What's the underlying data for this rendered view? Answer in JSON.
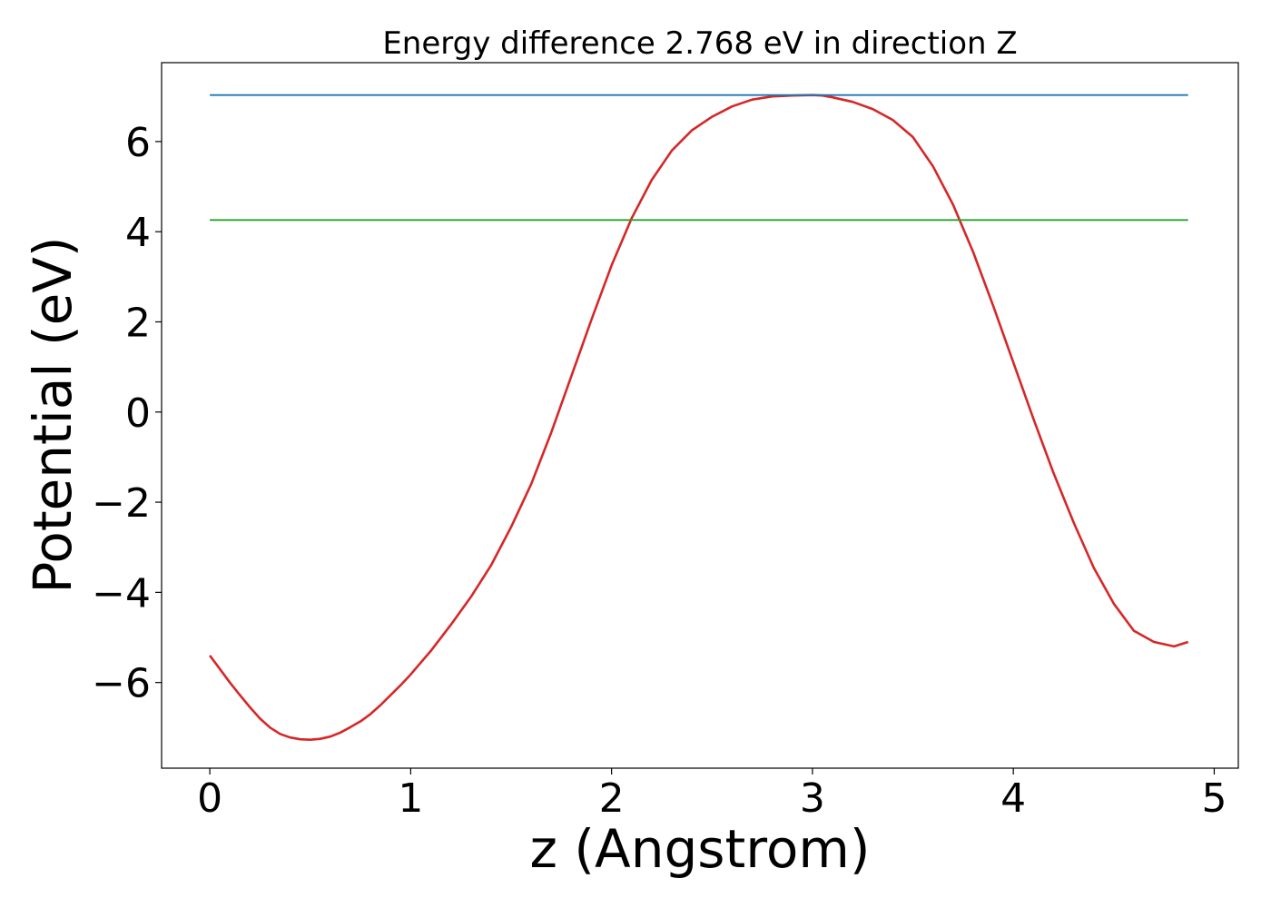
{
  "chart_data": {
    "type": "line",
    "title": "Energy difference 2.768 eV in direction Z",
    "xlabel": "z (Angstrom)",
    "ylabel": "Potential (eV)",
    "xlim": [
      -0.24,
      5.12
    ],
    "ylim": [
      -7.9,
      7.75
    ],
    "x_ticks": [
      0,
      1,
      2,
      3,
      4,
      5
    ],
    "x_tick_labels": [
      "0",
      "1",
      "2",
      "3",
      "4",
      "5"
    ],
    "y_ticks": [
      -6,
      -4,
      -2,
      0,
      2,
      4,
      6
    ],
    "y_tick_labels": [
      "−6",
      "−4",
      "−2",
      "0",
      "2",
      "4",
      "6"
    ],
    "grid": false,
    "series": [
      {
        "color": "#d62728",
        "x": [
          0.0,
          0.05,
          0.1,
          0.15,
          0.2,
          0.25,
          0.3,
          0.35,
          0.4,
          0.45,
          0.5,
          0.55,
          0.6,
          0.65,
          0.7,
          0.75,
          0.8,
          0.85,
          0.9,
          0.95,
          1.0,
          1.1,
          1.2,
          1.3,
          1.4,
          1.5,
          1.6,
          1.7,
          1.8,
          1.9,
          2.0,
          2.1,
          2.2,
          2.3,
          2.4,
          2.5,
          2.6,
          2.7,
          2.8,
          2.9,
          3.0,
          3.05,
          3.1,
          3.2,
          3.3,
          3.4,
          3.5,
          3.6,
          3.7,
          3.8,
          3.9,
          4.0,
          4.1,
          4.2,
          4.3,
          4.4,
          4.5,
          4.6,
          4.7,
          4.8,
          4.87
        ],
        "y": [
          -5.4,
          -5.7,
          -6.0,
          -6.28,
          -6.55,
          -6.8,
          -7.0,
          -7.14,
          -7.22,
          -7.26,
          -7.27,
          -7.25,
          -7.2,
          -7.11,
          -6.99,
          -6.86,
          -6.7,
          -6.5,
          -6.28,
          -6.06,
          -5.82,
          -5.3,
          -4.72,
          -4.1,
          -3.4,
          -2.55,
          -1.6,
          -0.45,
          0.8,
          2.05,
          3.25,
          4.3,
          5.15,
          5.8,
          6.25,
          6.55,
          6.78,
          6.93,
          7.0,
          7.02,
          7.03,
          7.02,
          6.98,
          6.88,
          6.72,
          6.48,
          6.1,
          5.45,
          4.6,
          3.55,
          2.35,
          1.1,
          -0.15,
          -1.35,
          -2.45,
          -3.45,
          -4.25,
          -4.85,
          -5.1,
          -5.2,
          -5.1
        ]
      },
      {
        "color": "#1f77b4",
        "x": [
          0.0,
          4.87
        ],
        "y": [
          7.03,
          7.03
        ]
      },
      {
        "color": "#2ca02c",
        "x": [
          0.0,
          4.87
        ],
        "y": [
          4.26,
          4.26
        ]
      }
    ]
  }
}
